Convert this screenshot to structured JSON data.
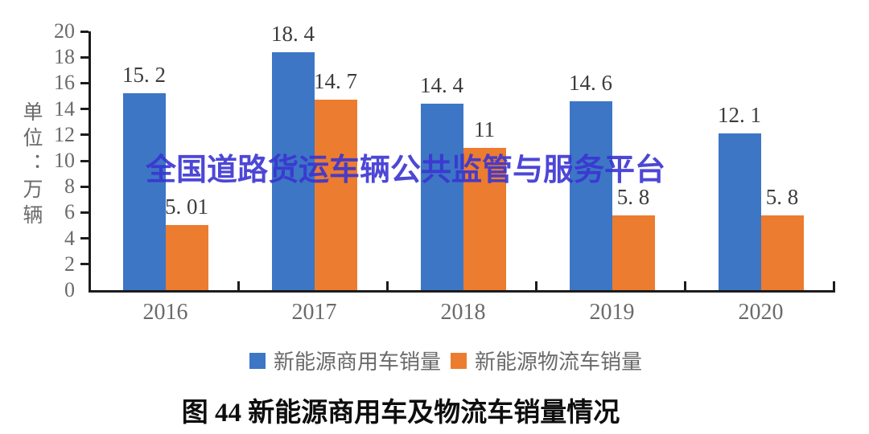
{
  "colors": {
    "blue": "#3D76C5",
    "orange": "#EC7C2F",
    "watermark": "#3A34D2",
    "axis": "#1c1c1c",
    "muted": "#6a6a6a",
    "label": "#3c3c3c",
    "caption": "#0e0e0e",
    "bg": "#ffffff"
  },
  "unit_label": "单位：万辆",
  "watermark_text": "全国道路货运车辆公共监管与服务平台",
  "caption": "图 44  新能源商用车及物流车销量情况",
  "chart_data": {
    "type": "bar",
    "categories": [
      "2016",
      "2017",
      "2018",
      "2019",
      "2020"
    ],
    "series": [
      {
        "name": "新能源商用车销量",
        "color": "#3D76C5",
        "values": [
          15.2,
          18.4,
          14.4,
          14.6,
          12.1
        ],
        "labels": [
          "15. 2",
          "18. 4",
          "14. 4",
          "14. 6",
          "12. 1"
        ]
      },
      {
        "name": "新能源物流车销量",
        "color": "#EC7C2F",
        "values": [
          5.01,
          14.7,
          11,
          5.8,
          5.8
        ],
        "labels": [
          "5. 01",
          "14. 7",
          "11",
          "5. 8",
          "5. 8"
        ]
      }
    ],
    "title": "图 44  新能源商用车及物流车销量情况",
    "xlabel": "",
    "ylabel": "单位：万辆",
    "ylim": [
      0,
      20
    ],
    "ytick_step": 2,
    "grid": false,
    "legend_position": "bottom"
  }
}
